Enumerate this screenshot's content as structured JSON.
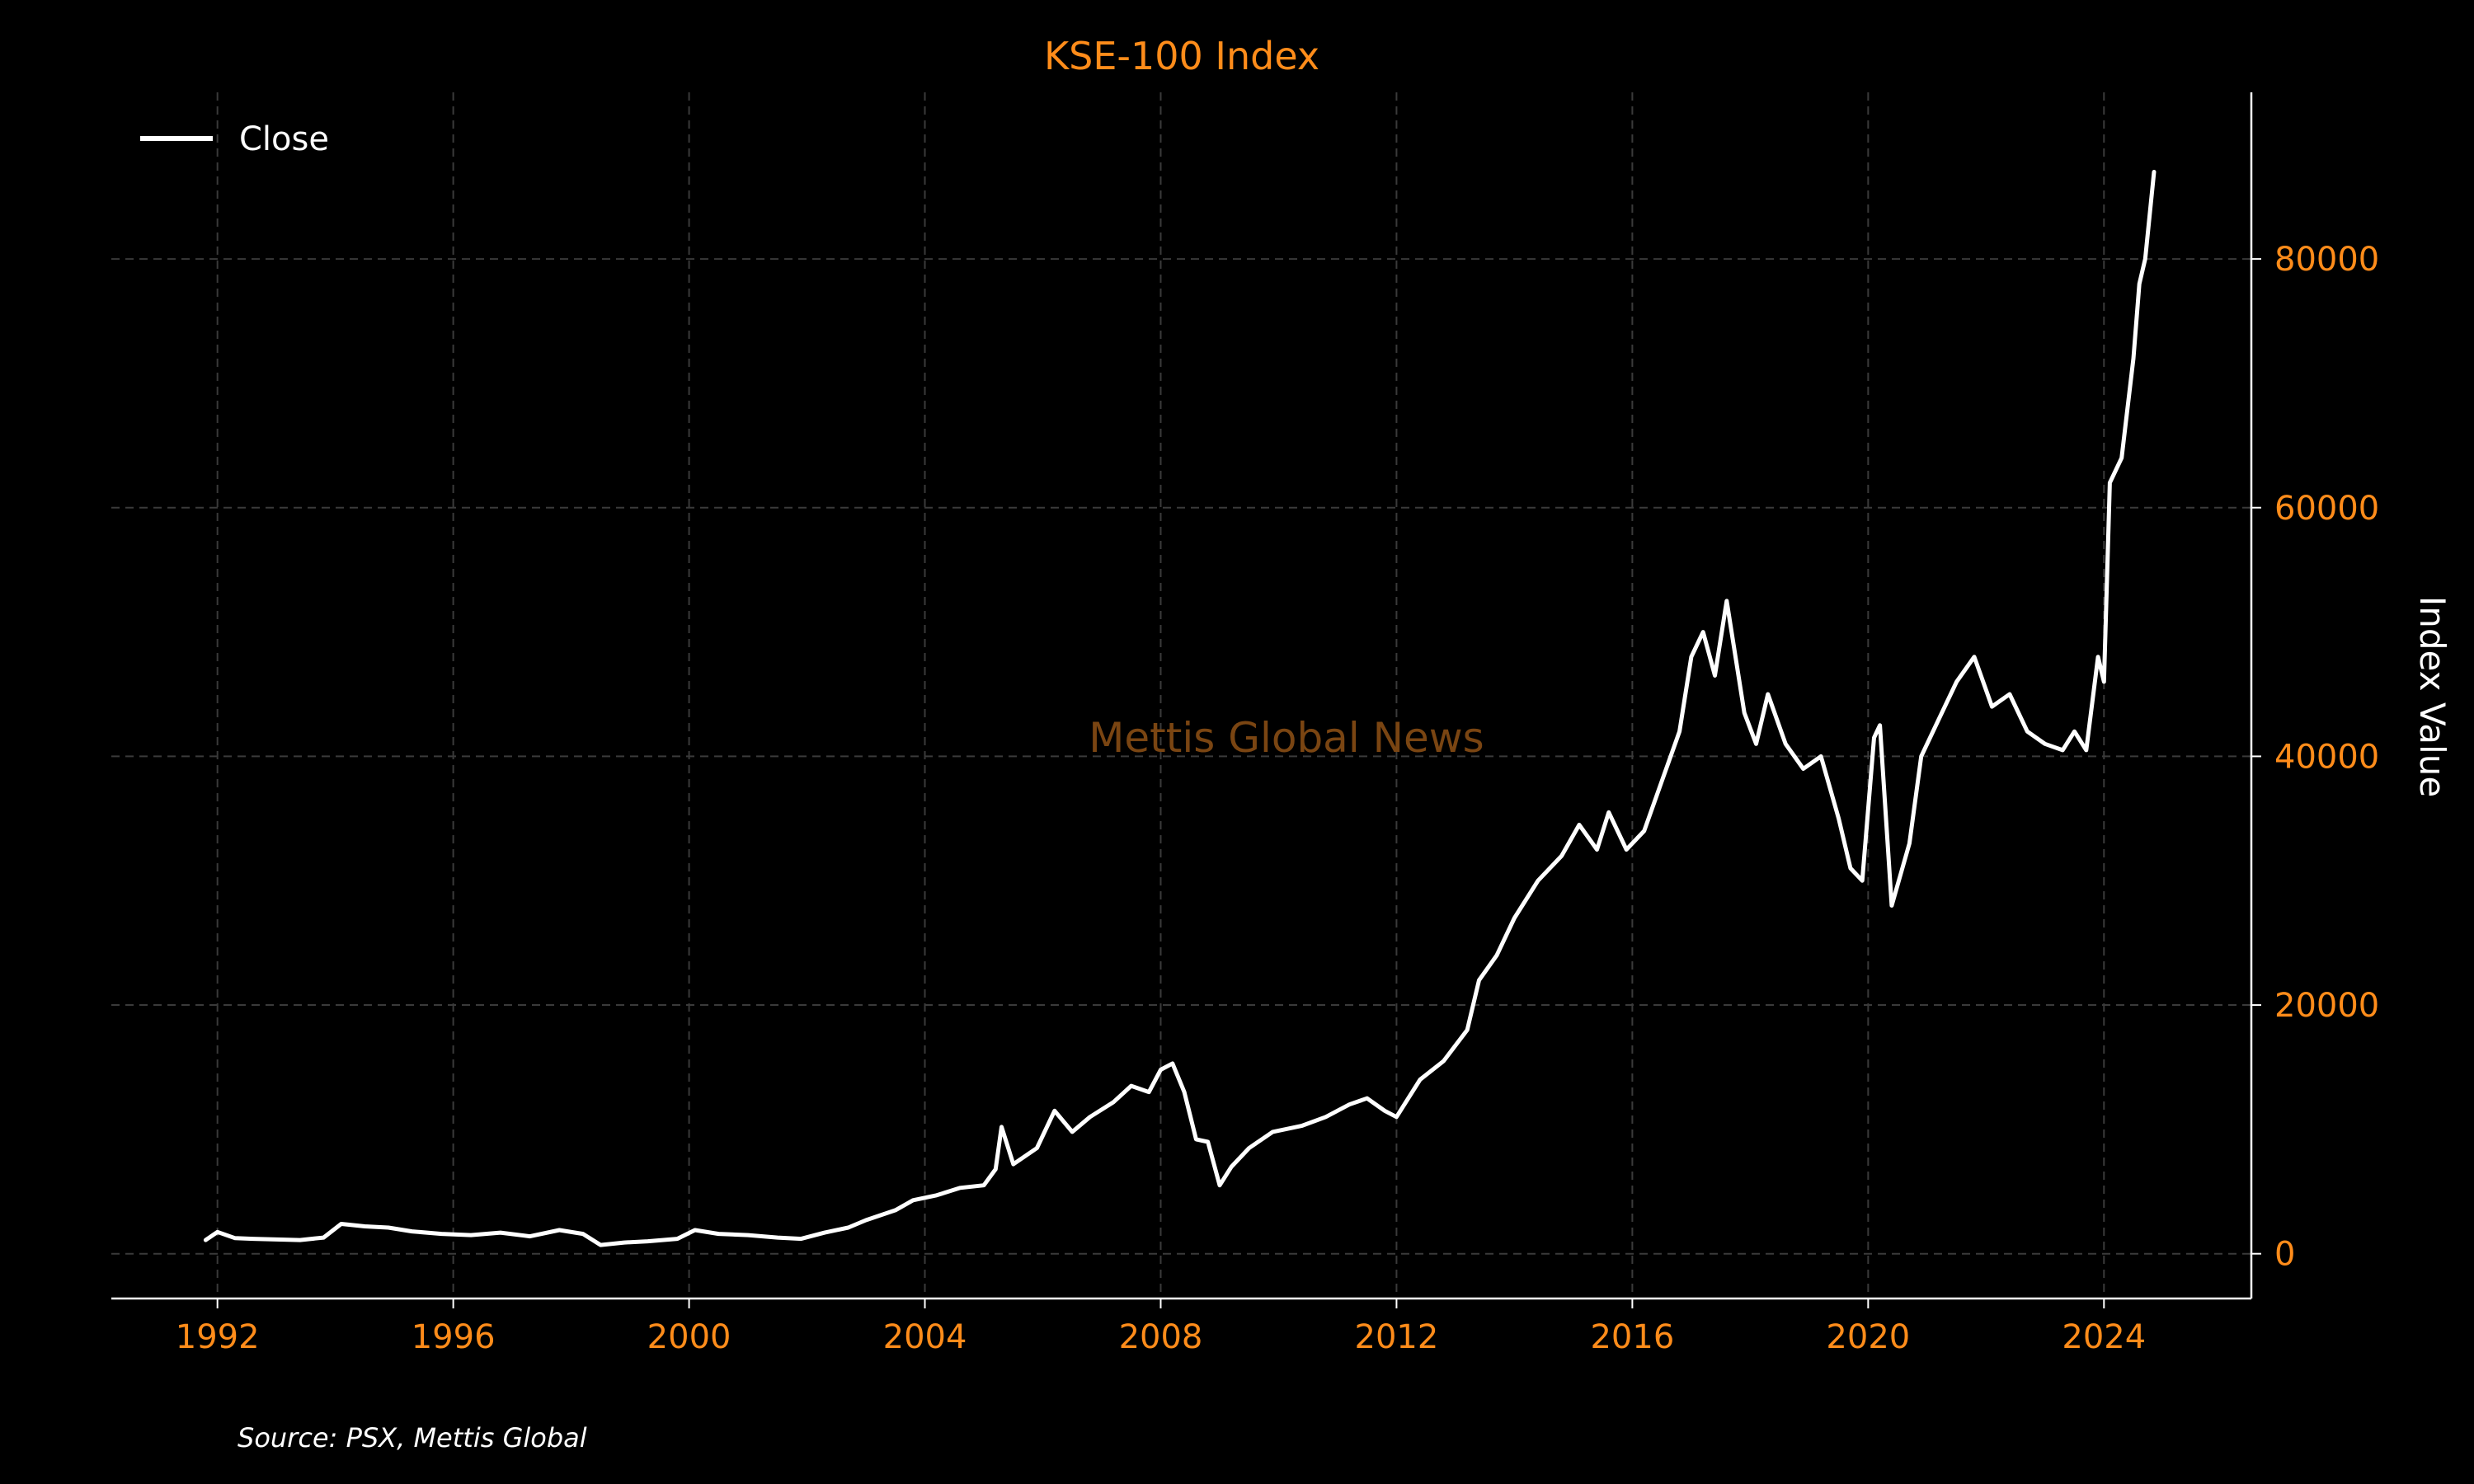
{
  "chart_data": {
    "type": "line",
    "title": "KSE-100 Index",
    "xlabel": "",
    "ylabel": "Index Value",
    "watermark": "Mettis Global News",
    "source": "Source: PSX, Mettis Global",
    "legend": {
      "position": "top-left",
      "entries": [
        "Close"
      ]
    },
    "grid": true,
    "xlim": [
      1990.2,
      2026.5
    ],
    "ylim": [
      -3600,
      93400
    ],
    "x_ticks": [
      1992,
      1996,
      2000,
      2004,
      2008,
      2012,
      2016,
      2020,
      2024
    ],
    "x_tick_labels": [
      "1992",
      "1996",
      "2000",
      "2004",
      "2008",
      "2012",
      "2016",
      "2020",
      "2024"
    ],
    "y_ticks": [
      0,
      20000,
      40000,
      60000,
      80000
    ],
    "y_tick_labels": [
      "0",
      "20000",
      "40000",
      "60000",
      "80000"
    ],
    "colors": {
      "background": "#000000",
      "accent": "#ff8c1a",
      "line": "#ffffff",
      "grid": "#3a3a3a",
      "watermark": "#7a4512"
    },
    "series": [
      {
        "name": "Close",
        "x": [
          1991.8,
          1992.0,
          1992.3,
          1992.6,
          1993.0,
          1993.4,
          1993.8,
          1994.1,
          1994.5,
          1994.9,
          1995.3,
          1995.8,
          1996.3,
          1996.8,
          1997.3,
          1997.8,
          1998.2,
          1998.5,
          1998.9,
          1999.3,
          1999.8,
          2000.1,
          2000.5,
          2001.0,
          2001.5,
          2001.9,
          2002.3,
          2002.7,
          2003.0,
          2003.5,
          2003.8,
          2004.2,
          2004.6,
          2005.0,
          2005.2,
          2005.3,
          2005.5,
          2005.9,
          2006.2,
          2006.5,
          2006.8,
          2007.2,
          2007.5,
          2007.8,
          2008.0,
          2008.2,
          2008.4,
          2008.6,
          2008.8,
          2009.0,
          2009.2,
          2009.5,
          2009.9,
          2010.4,
          2010.8,
          2011.2,
          2011.5,
          2011.8,
          2012.0,
          2012.4,
          2012.8,
          2013.2,
          2013.4,
          2013.7,
          2014.0,
          2014.4,
          2014.8,
          2015.1,
          2015.4,
          2015.6,
          2015.9,
          2016.2,
          2016.5,
          2016.8,
          2017.0,
          2017.2,
          2017.4,
          2017.6,
          2017.9,
          2018.1,
          2018.3,
          2018.6,
          2018.9,
          2019.2,
          2019.5,
          2019.7,
          2019.9,
          2020.1,
          2020.2,
          2020.4,
          2020.7,
          2020.9,
          2021.2,
          2021.5,
          2021.8,
          2022.1,
          2022.4,
          2022.7,
          2023.0,
          2023.3,
          2023.5,
          2023.7,
          2023.9,
          2024.0,
          2024.1,
          2024.3,
          2024.5,
          2024.6,
          2024.7,
          2024.85
        ],
        "values": [
          1100,
          1750,
          1250,
          1200,
          1150,
          1100,
          1300,
          2400,
          2200,
          2100,
          1800,
          1600,
          1500,
          1700,
          1400,
          1900,
          1600,
          700,
          900,
          1000,
          1200,
          1900,
          1600,
          1500,
          1300,
          1200,
          1700,
          2100,
          2700,
          3500,
          4300,
          4700,
          5300,
          5500,
          6800,
          10200,
          7200,
          8500,
          11500,
          9800,
          11000,
          12200,
          13500,
          13000,
          14800,
          15300,
          13000,
          9200,
          9000,
          5500,
          7000,
          8500,
          9800,
          10300,
          11000,
          12000,
          12500,
          11500,
          11000,
          14000,
          15500,
          18000,
          22000,
          24000,
          27000,
          30000,
          32000,
          34500,
          32500,
          35500,
          32500,
          34000,
          38000,
          42000,
          48000,
          50000,
          46500,
          52500,
          43500,
          41000,
          45000,
          41000,
          39000,
          40000,
          35000,
          31000,
          30000,
          41500,
          42500,
          28000,
          33000,
          40000,
          43000,
          46000,
          48000,
          44000,
          45000,
          42000,
          41000,
          40500,
          42000,
          40500,
          48000,
          46000,
          62000,
          64000,
          72000,
          78000,
          80000,
          87000
        ]
      }
    ]
  }
}
